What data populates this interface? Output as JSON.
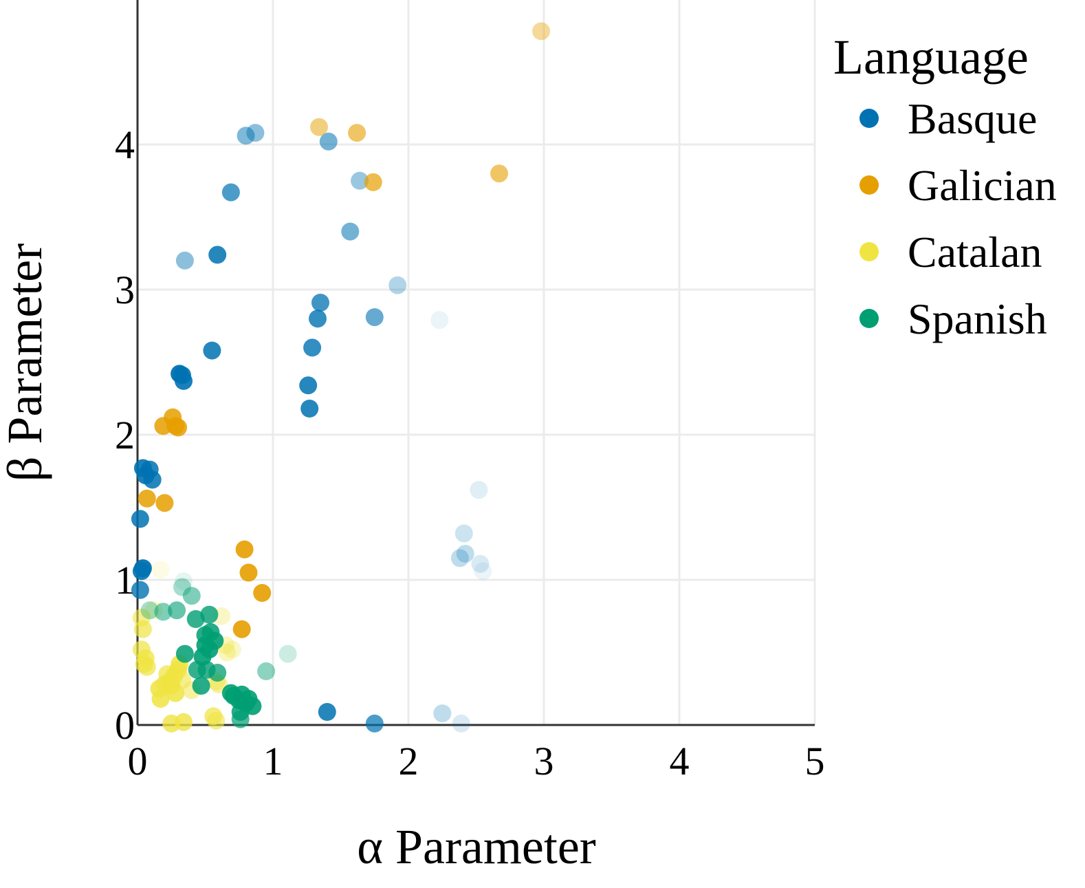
{
  "chart_data": {
    "type": "scatter",
    "title": "",
    "xlabel": "α Parameter",
    "ylabel": "β Parameter",
    "xlim": [
      0,
      5
    ],
    "ylim": [
      0,
      5
    ],
    "xticks": [
      0,
      1,
      2,
      3,
      4,
      5
    ],
    "yticks": [
      0,
      1,
      2,
      3,
      4
    ],
    "grid": true,
    "legend": {
      "title": "Language",
      "placement": "top-right-outside",
      "entries": [
        "Basque",
        "Galician",
        "Catalan",
        "Spanish"
      ]
    },
    "colors": {
      "Basque": "#0072B2",
      "Galician": "#E69F00",
      "Catalan": "#F0E442",
      "Spanish": "#009E73"
    },
    "series": [
      {
        "name": "Basque",
        "points": [
          [
            0.8,
            4.06,
            0.5
          ],
          [
            0.87,
            4.08,
            0.45
          ],
          [
            1.41,
            4.02,
            0.55
          ],
          [
            1.64,
            3.75,
            0.4
          ],
          [
            0.69,
            3.67,
            0.7
          ],
          [
            1.57,
            3.4,
            0.55
          ],
          [
            0.59,
            3.24,
            0.85
          ],
          [
            0.35,
            3.2,
            0.45
          ],
          [
            1.92,
            3.03,
            0.3
          ],
          [
            1.35,
            2.91,
            0.75
          ],
          [
            1.33,
            2.8,
            0.8
          ],
          [
            1.75,
            2.81,
            0.6
          ],
          [
            2.23,
            2.79,
            0.08
          ],
          [
            1.29,
            2.6,
            0.8
          ],
          [
            0.55,
            2.58,
            0.85
          ],
          [
            0.31,
            2.42,
            0.95
          ],
          [
            0.33,
            2.41,
            0.9
          ],
          [
            0.34,
            2.37,
            0.9
          ],
          [
            1.26,
            2.34,
            0.85
          ],
          [
            1.27,
            2.18,
            0.85
          ],
          [
            0.04,
            1.77,
            0.9
          ],
          [
            0.09,
            1.76,
            0.85
          ],
          [
            0.06,
            1.72,
            0.9
          ],
          [
            0.11,
            1.69,
            0.85
          ],
          [
            0.02,
            1.42,
            0.85
          ],
          [
            0.04,
            1.08,
            0.95
          ],
          [
            0.03,
            1.06,
            0.9
          ],
          [
            0.02,
            0.93,
            0.8
          ],
          [
            2.52,
            1.62,
            0.12
          ],
          [
            2.41,
            1.32,
            0.2
          ],
          [
            2.42,
            1.18,
            0.25
          ],
          [
            2.38,
            1.15,
            0.25
          ],
          [
            2.53,
            1.11,
            0.15
          ],
          [
            2.55,
            1.06,
            0.08
          ],
          [
            1.4,
            0.09,
            0.85
          ],
          [
            1.75,
            0.01,
            0.7
          ],
          [
            2.25,
            0.08,
            0.25
          ],
          [
            2.39,
            0.01,
            0.15
          ]
        ]
      },
      {
        "name": "Galician",
        "points": [
          [
            2.98,
            4.78,
            0.4
          ],
          [
            1.34,
            4.12,
            0.5
          ],
          [
            1.62,
            4.08,
            0.6
          ],
          [
            2.67,
            3.8,
            0.6
          ],
          [
            1.74,
            3.74,
            0.7
          ],
          [
            0.26,
            2.12,
            0.85
          ],
          [
            0.19,
            2.06,
            0.85
          ],
          [
            0.28,
            2.06,
            0.85
          ],
          [
            0.3,
            2.05,
            0.85
          ],
          [
            0.07,
            1.56,
            0.85
          ],
          [
            0.2,
            1.53,
            0.85
          ],
          [
            0.79,
            1.21,
            0.9
          ],
          [
            0.82,
            1.05,
            0.9
          ],
          [
            0.92,
            0.91,
            0.9
          ],
          [
            0.77,
            0.66,
            0.9
          ]
        ]
      },
      {
        "name": "Catalan",
        "points": [
          [
            0.17,
            1.07,
            0.15
          ],
          [
            0.03,
            0.74,
            0.6
          ],
          [
            0.03,
            0.52,
            0.7
          ],
          [
            0.04,
            0.66,
            0.7
          ],
          [
            0.06,
            0.46,
            0.75
          ],
          [
            0.05,
            0.42,
            0.75
          ],
          [
            0.07,
            0.4,
            0.7
          ],
          [
            0.16,
            0.25,
            0.85
          ],
          [
            0.2,
            0.28,
            0.85
          ],
          [
            0.24,
            0.3,
            0.85
          ],
          [
            0.27,
            0.34,
            0.85
          ],
          [
            0.3,
            0.38,
            0.85
          ],
          [
            0.31,
            0.42,
            0.85
          ],
          [
            0.25,
            0.27,
            0.85
          ],
          [
            0.28,
            0.22,
            0.85
          ],
          [
            0.17,
            0.18,
            0.85
          ],
          [
            0.4,
            0.24,
            0.5
          ],
          [
            0.22,
            0.35,
            0.7
          ],
          [
            0.33,
            0.31,
            0.6
          ],
          [
            0.25,
            0.01,
            0.8
          ],
          [
            0.34,
            0.02,
            0.8
          ],
          [
            0.56,
            0.06,
            0.7
          ],
          [
            0.58,
            0.03,
            0.6
          ],
          [
            0.62,
            0.75,
            0.3
          ],
          [
            0.65,
            0.55,
            0.35
          ],
          [
            0.66,
            0.5,
            0.35
          ],
          [
            0.7,
            0.52,
            0.3
          ],
          [
            0.58,
            0.3,
            0.5
          ],
          [
            0.6,
            0.28,
            0.5
          ],
          [
            0.12,
            0.79,
            0.3
          ]
        ]
      },
      {
        "name": "Spanish",
        "points": [
          [
            0.34,
            0.99,
            0.1
          ],
          [
            0.33,
            0.95,
            0.35
          ],
          [
            0.4,
            0.89,
            0.5
          ],
          [
            0.09,
            0.79,
            0.35
          ],
          [
            0.19,
            0.78,
            0.5
          ],
          [
            0.29,
            0.79,
            0.6
          ],
          [
            0.43,
            0.73,
            0.8
          ],
          [
            0.53,
            0.76,
            0.8
          ],
          [
            0.5,
            0.62,
            0.85
          ],
          [
            0.54,
            0.64,
            0.85
          ],
          [
            0.57,
            0.58,
            0.9
          ],
          [
            0.5,
            0.55,
            0.9
          ],
          [
            0.53,
            0.52,
            0.9
          ],
          [
            0.48,
            0.47,
            0.9
          ],
          [
            0.35,
            0.49,
            0.85
          ],
          [
            0.44,
            0.38,
            0.8
          ],
          [
            0.51,
            0.38,
            0.8
          ],
          [
            0.59,
            0.36,
            0.75
          ],
          [
            0.47,
            0.27,
            0.85
          ],
          [
            0.71,
            0.2,
            0.9
          ],
          [
            0.75,
            0.17,
            0.9
          ],
          [
            0.77,
            0.21,
            0.9
          ],
          [
            0.8,
            0.15,
            0.9
          ],
          [
            0.85,
            0.13,
            0.9
          ],
          [
            0.76,
            0.09,
            0.85
          ],
          [
            0.76,
            0.04,
            0.7
          ],
          [
            0.95,
            0.37,
            0.45
          ],
          [
            1.11,
            0.49,
            0.2
          ],
          [
            0.69,
            0.22,
            0.9
          ],
          [
            0.82,
            0.18,
            0.9
          ]
        ]
      }
    ]
  }
}
